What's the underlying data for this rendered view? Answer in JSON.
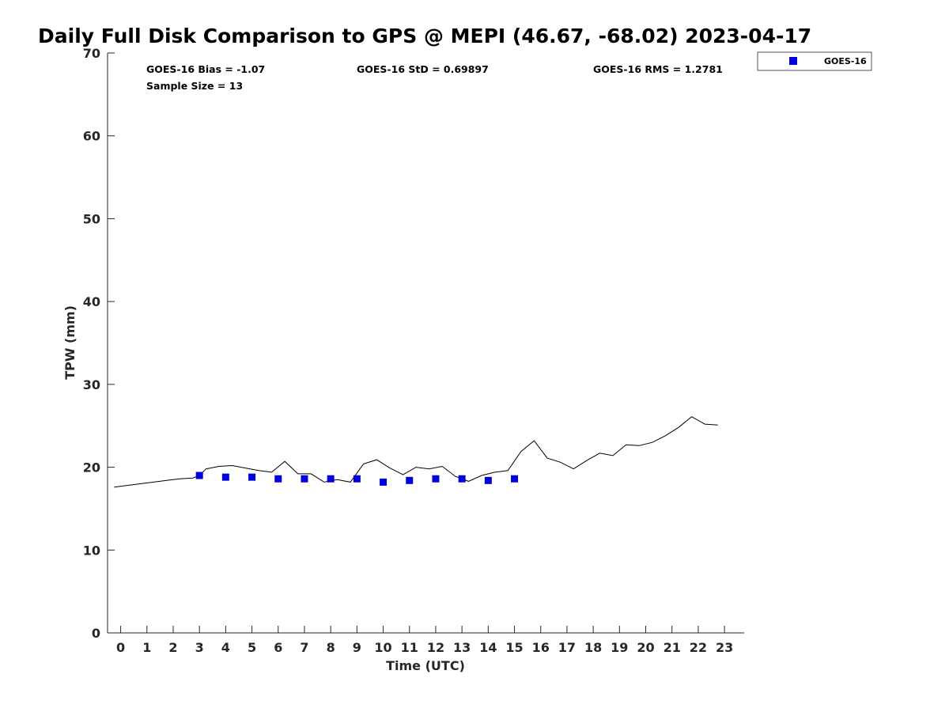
{
  "chart_data": {
    "type": "scatter",
    "title": "Daily Full Disk Comparison to GPS @ MEPI (46.67, -68.02) 2023-04-17",
    "xlabel": "Time (UTC)",
    "ylabel": "TPW (mm)",
    "xlim": [
      -0.5,
      23.75
    ],
    "ylim": [
      0,
      70
    ],
    "x_ticks": [
      0,
      1,
      2,
      3,
      4,
      5,
      6,
      7,
      8,
      9,
      10,
      11,
      12,
      13,
      14,
      15,
      16,
      17,
      18,
      19,
      20,
      21,
      22,
      23
    ],
    "y_ticks": [
      0,
      10,
      20,
      30,
      40,
      50,
      60,
      70
    ],
    "grid": false,
    "legend_position": "top-right",
    "stats": {
      "bias": "GOES-16 Bias = -1.07",
      "std": "GOES-16 StD = 0.69897",
      "rms": "GOES-16 RMS = 1.2781",
      "sample": "Sample Size = 13"
    },
    "gps_line": {
      "color": "#000000",
      "x": [
        -0.25,
        0.25,
        0.75,
        1.25,
        1.75,
        2.25,
        2.75,
        3.0,
        3.25,
        3.75,
        4.25,
        4.75,
        5.25,
        5.75,
        6.25,
        6.75,
        7.25,
        7.75,
        8.25,
        8.75,
        9.25,
        9.75,
        10.25,
        10.75,
        11.25,
        11.75,
        12.25,
        12.75,
        13.25,
        13.75,
        14.25,
        14.75,
        15.25,
        15.75,
        16.25,
        16.75,
        17.25,
        17.75,
        18.25,
        18.75,
        19.25,
        19.75,
        20.25,
        20.75,
        21.25,
        21.75,
        22.25,
        22.75
      ],
      "y": [
        17.6,
        17.8,
        18.0,
        18.2,
        18.4,
        18.6,
        18.7,
        19.0,
        19.8,
        20.1,
        20.2,
        19.9,
        19.6,
        19.4,
        20.7,
        19.2,
        19.2,
        18.2,
        18.5,
        18.2,
        20.4,
        20.9,
        19.9,
        19.1,
        20.0,
        19.8,
        20.1,
        18.9,
        18.3,
        19.0,
        19.4,
        19.6,
        21.9,
        23.2,
        21.1,
        20.6,
        19.8,
        20.8,
        21.7,
        21.4,
        22.7,
        22.6,
        23.0,
        23.8,
        24.8,
        26.1,
        25.2,
        25.1
      ]
    },
    "series": [
      {
        "name": "GOES-16",
        "color": "#0000dd",
        "x": [
          3.0,
          4.0,
          5.0,
          6.0,
          7.0,
          8.0,
          9.0,
          10.0,
          11.0,
          12.0,
          13.0,
          14.0,
          15.0
        ],
        "y": [
          19.0,
          18.8,
          18.8,
          18.6,
          18.6,
          18.6,
          18.6,
          18.2,
          18.4,
          18.6,
          18.6,
          18.4,
          18.6
        ]
      }
    ]
  }
}
